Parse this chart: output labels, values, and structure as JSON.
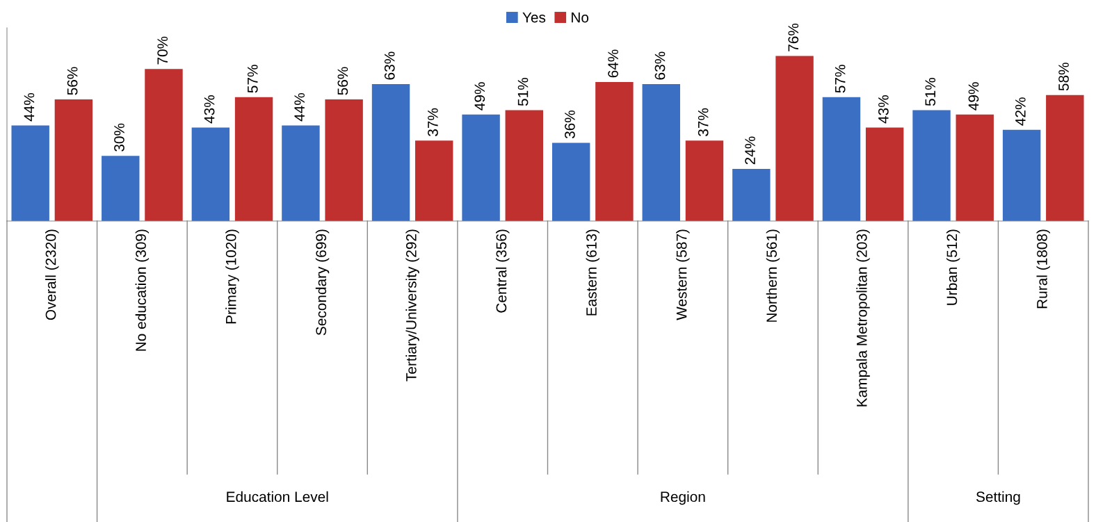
{
  "chart_data": {
    "type": "bar",
    "categories": [
      "Overall (2320)",
      "No education (309)",
      "Primary (1020)",
      "Secondary (699)",
      "Tertiary/University (292)",
      "Central (356)",
      "Eastern (613)",
      "Western (587)",
      "Northern (561)",
      "Kampala Metropolitan (203)",
      "Urban (512)",
      "Rural (1808)"
    ],
    "series": [
      {
        "name": "Yes",
        "color": "#3a6fc4",
        "values": [
          44,
          30,
          43,
          44,
          63,
          49,
          36,
          63,
          24,
          57,
          51,
          42
        ],
        "value_labels": [
          "44%",
          "30%",
          "43%",
          "44%",
          "63%",
          "49%",
          "36%",
          "63%",
          "24%",
          "57%",
          "51%",
          "42%"
        ]
      },
      {
        "name": "No",
        "color": "#c0302e",
        "values": [
          56,
          70,
          57,
          56,
          37,
          51,
          64,
          37,
          76,
          43,
          49,
          58
        ],
        "value_labels": [
          "56%",
          "70%",
          "57%",
          "56%",
          "37%",
          "51%",
          "64%",
          "37%",
          "76%",
          "43%",
          "49%",
          "58%"
        ]
      }
    ],
    "annotations": [
      "Education Level",
      "Region",
      "Setting"
    ],
    "legend": "top",
    "grid": false
  }
}
